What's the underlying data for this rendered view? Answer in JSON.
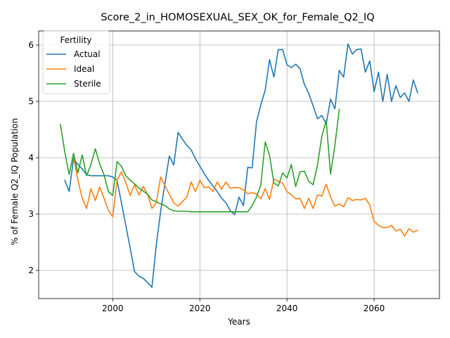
{
  "chart_data": {
    "type": "line",
    "title": "Score_2_in_HOMOSEXUAL_SEX_OK_for_Female_Q2_IQ",
    "xlabel": "Years",
    "ylabel": "% of Female Q2_IQ Population",
    "xlim": [
      1983,
      2075
    ],
    "ylim": [
      1.5,
      6.25
    ],
    "xticks": [
      2000,
      2020,
      2040,
      2060
    ],
    "yticks": [
      2,
      3,
      4,
      5,
      6
    ],
    "grid": true,
    "legend": {
      "title": "Fertility",
      "placement": "top-left"
    },
    "series": [
      {
        "name": "Actual",
        "color": "#1f77b4",
        "x": [
          1989,
          1990,
          1991,
          1992,
          1993,
          1994,
          1995,
          1996,
          1997,
          1998,
          1999,
          2000,
          2001,
          2002,
          2003,
          2004,
          2005,
          2006,
          2007,
          2008,
          2009,
          2010,
          2011,
          2012,
          2013,
          2014,
          2015,
          2016,
          2017,
          2018,
          2019,
          2020,
          2021,
          2022,
          2023,
          2024,
          2025,
          2026,
          2027,
          2028,
          2029,
          2030,
          2031,
          2032,
          2033,
          2034,
          2035,
          2036,
          2037,
          2038,
          2039,
          2040,
          2041,
          2042,
          2043,
          2044,
          2045,
          2046,
          2047,
          2048,
          2049,
          2050,
          2051,
          2052,
          2053,
          2054,
          2055,
          2056,
          2057,
          2058,
          2059,
          2060,
          2061,
          2062,
          2063,
          2064,
          2065,
          2066,
          2067,
          2068,
          2069,
          2070
        ],
        "y": [
          3.6,
          3.4,
          3.98,
          3.88,
          3.8,
          3.7,
          3.68,
          3.68,
          3.68,
          3.68,
          3.68,
          3.66,
          3.6,
          3.2,
          2.8,
          2.4,
          1.98,
          1.9,
          1.86,
          1.78,
          1.7,
          2.45,
          3.05,
          3.55,
          4.03,
          3.87,
          4.45,
          4.33,
          4.22,
          4.14,
          3.98,
          3.85,
          3.72,
          3.6,
          3.5,
          3.4,
          3.28,
          3.2,
          3.06,
          2.99,
          3.3,
          3.15,
          3.83,
          3.82,
          4.63,
          4.94,
          5.2,
          5.74,
          5.43,
          5.92,
          5.92,
          5.65,
          5.6,
          5.66,
          5.58,
          5.3,
          5.14,
          4.92,
          4.69,
          4.75,
          4.6,
          5.04,
          4.87,
          5.55,
          5.43,
          6.02,
          5.84,
          5.92,
          5.93,
          5.52,
          5.72,
          5.17,
          5.52,
          5.0,
          5.48,
          5.0,
          5.28,
          5.07,
          5.15,
          5.0,
          5.38,
          5.15
        ]
      },
      {
        "name": "Ideal",
        "color": "#ff7f0e",
        "x": [
          1991,
          1992,
          1993,
          1994,
          1995,
          1996,
          1997,
          1998,
          1999,
          2000,
          2001,
          2002,
          2003,
          2004,
          2005,
          2006,
          2007,
          2008,
          2009,
          2010,
          2011,
          2012,
          2013,
          2014,
          2015,
          2016,
          2017,
          2018,
          2019,
          2020,
          2021,
          2022,
          2023,
          2024,
          2025,
          2026,
          2027,
          2028,
          2029,
          2030,
          2031,
          2032,
          2033,
          2034,
          2035,
          2036,
          2037,
          2038,
          2039,
          2040,
          2041,
          2042,
          2043,
          2044,
          2045,
          2046,
          2047,
          2048,
          2049,
          2050,
          2051,
          2052,
          2053,
          2054,
          2055,
          2056,
          2057,
          2058,
          2059,
          2060,
          2061,
          2062,
          2063,
          2064,
          2065,
          2066,
          2067,
          2068,
          2069,
          2070
        ],
        "y": [
          4.03,
          3.6,
          3.28,
          3.1,
          3.45,
          3.24,
          3.48,
          3.28,
          3.07,
          2.95,
          3.6,
          3.75,
          3.56,
          3.33,
          3.52,
          3.34,
          3.49,
          3.35,
          3.1,
          3.2,
          3.66,
          3.5,
          3.35,
          3.2,
          3.14,
          3.22,
          3.3,
          3.57,
          3.4,
          3.6,
          3.47,
          3.48,
          3.4,
          3.57,
          3.44,
          3.57,
          3.46,
          3.47,
          3.47,
          3.43,
          3.36,
          3.38,
          3.36,
          3.27,
          3.45,
          3.26,
          3.62,
          3.58,
          3.55,
          3.4,
          3.34,
          3.27,
          3.28,
          3.1,
          3.28,
          3.1,
          3.34,
          3.32,
          3.53,
          3.3,
          3.14,
          3.18,
          3.13,
          3.29,
          3.24,
          3.26,
          3.25,
          3.28,
          3.16,
          2.87,
          2.8,
          2.76,
          2.76,
          2.8,
          2.7,
          2.73,
          2.61,
          2.74,
          2.68,
          2.71
        ]
      },
      {
        "name": "Sterile",
        "color": "#2ca02c",
        "x": [
          1988,
          1989,
          1990,
          1991,
          1992,
          1993,
          1994,
          1995,
          1996,
          1997,
          1998,
          1999,
          2000,
          2001,
          2002,
          2003,
          2004,
          2005,
          2006,
          2007,
          2008,
          2009,
          2010,
          2011,
          2012,
          2013,
          2014,
          2015,
          2016,
          2017,
          2018,
          2019,
          2020,
          2021,
          2022,
          2023,
          2024,
          2025,
          2026,
          2027,
          2028,
          2029,
          2030,
          2031,
          2032,
          2033,
          2034,
          2035,
          2036,
          2037,
          2038,
          2039,
          2040,
          2041,
          2042,
          2043,
          2044,
          2045,
          2046,
          2047,
          2048,
          2049,
          2050,
          2051,
          2052
        ],
        "y": [
          4.59,
          4.1,
          3.7,
          4.08,
          3.73,
          4.05,
          3.68,
          3.88,
          4.16,
          3.89,
          3.7,
          3.4,
          3.33,
          3.93,
          3.85,
          3.68,
          3.6,
          3.54,
          3.46,
          3.41,
          3.35,
          3.25,
          3.22,
          3.18,
          3.15,
          3.09,
          3.06,
          3.05,
          3.05,
          3.05,
          3.04,
          3.04,
          3.04,
          3.04,
          3.04,
          3.04,
          3.04,
          3.04,
          3.04,
          3.04,
          3.04,
          3.04,
          3.04,
          3.04,
          3.15,
          3.3,
          3.52,
          4.28,
          4.04,
          3.55,
          3.5,
          3.73,
          3.64,
          3.88,
          3.49,
          3.75,
          3.76,
          3.58,
          3.52,
          3.87,
          4.38,
          4.66,
          3.71,
          4.22,
          4.86
        ]
      }
    ]
  }
}
